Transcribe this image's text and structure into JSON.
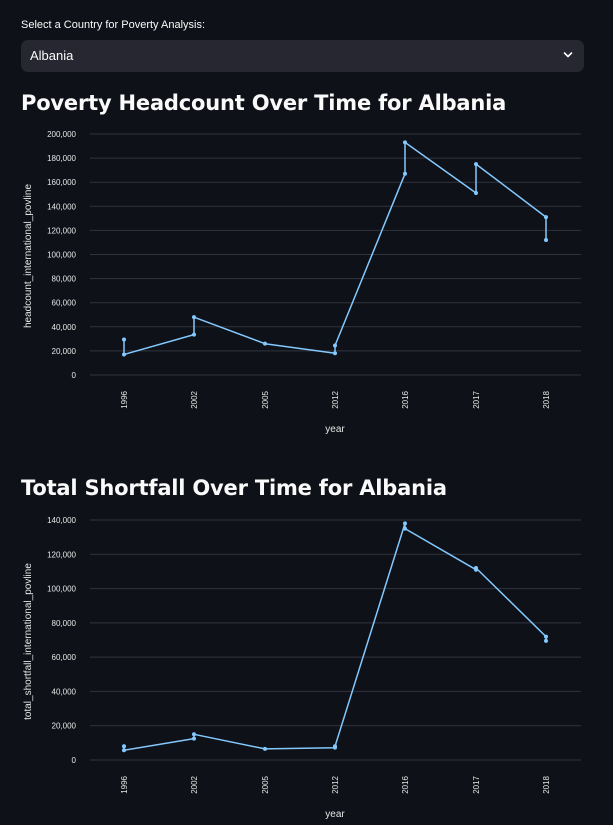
{
  "selector": {
    "label": "Select a Country for Poverty Analysis:",
    "value": "Albania",
    "icon": "chevron-down-icon"
  },
  "colors": {
    "background": "#0e1117",
    "line": "#83c9ff",
    "grid": "#31333f",
    "select_bg": "#262730"
  },
  "chart_data": [
    {
      "type": "line",
      "title": "Poverty Headcount Over Time for Albania",
      "xlabel": "year",
      "ylabel": "headcount_international_povline",
      "categories": [
        "1996",
        "2002",
        "2005",
        "2012",
        "2016",
        "2017",
        "2018"
      ],
      "y_ticks": [
        0,
        20000,
        40000,
        60000,
        80000,
        100000,
        120000,
        140000,
        160000,
        180000,
        200000
      ],
      "y_tick_labels": [
        "0",
        "20,000",
        "40,000",
        "60,000",
        "80,000",
        "100,000",
        "120,000",
        "140,000",
        "160,000",
        "180,000",
        "200,000"
      ],
      "ylim": [
        0,
        200000
      ],
      "grid": true,
      "points": [
        {
          "x": "1996",
          "y": 29500
        },
        {
          "x": "1996",
          "y": 17000
        },
        {
          "x": "2002",
          "y": 33500
        },
        {
          "x": "2002",
          "y": 48000
        },
        {
          "x": "2005",
          "y": 26000
        },
        {
          "x": "2012",
          "y": 18000
        },
        {
          "x": "2012",
          "y": 24500
        },
        {
          "x": "2016",
          "y": 167000
        },
        {
          "x": "2016",
          "y": 193000
        },
        {
          "x": "2017",
          "y": 151000
        },
        {
          "x": "2017",
          "y": 175000
        },
        {
          "x": "2018",
          "y": 131000
        },
        {
          "x": "2018",
          "y": 112000
        }
      ]
    },
    {
      "type": "line",
      "title": "Total Shortfall Over Time for Albania",
      "xlabel": "year",
      "ylabel": "total_shortfall_international_povline",
      "categories": [
        "1996",
        "2002",
        "2005",
        "2012",
        "2016",
        "2017",
        "2018"
      ],
      "y_ticks": [
        0,
        20000,
        40000,
        60000,
        80000,
        100000,
        120000,
        140000
      ],
      "y_tick_labels": [
        "0",
        "20,000",
        "40,000",
        "60,000",
        "80,000",
        "100,000",
        "120,000",
        "140,000"
      ],
      "ylim": [
        0,
        140000
      ],
      "grid": true,
      "points": [
        {
          "x": "1996",
          "y": 8000
        },
        {
          "x": "1996",
          "y": 5700
        },
        {
          "x": "2002",
          "y": 12500
        },
        {
          "x": "2002",
          "y": 15000
        },
        {
          "x": "2005",
          "y": 6500
        },
        {
          "x": "2012",
          "y": 7200
        },
        {
          "x": "2012",
          "y": 8000
        },
        {
          "x": "2016",
          "y": 138000
        },
        {
          "x": "2016",
          "y": 135000
        },
        {
          "x": "2017",
          "y": 111000
        },
        {
          "x": "2017",
          "y": 112000
        },
        {
          "x": "2018",
          "y": 72000
        },
        {
          "x": "2018",
          "y": 69500
        }
      ]
    }
  ]
}
